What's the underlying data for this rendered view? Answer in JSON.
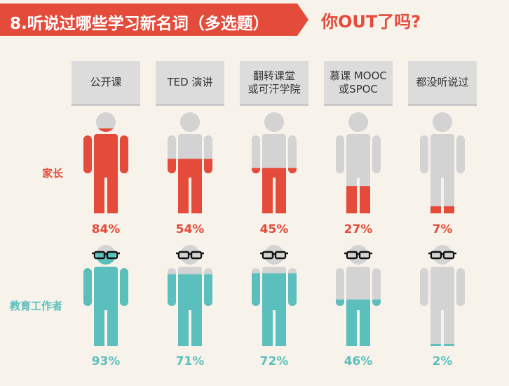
{
  "title": "8.听说过哪些学习新名词（多选题）",
  "subtitle": "你OUT了吗?",
  "colors": {
    "parent": "#e54b3b",
    "educator": "#5bc0bd",
    "grey": "#d3d3d3",
    "title_bg": "#e54b3b",
    "header_bg": "#dcdcdc"
  },
  "chart_data": {
    "type": "pictogram",
    "categories": [
      "公开课",
      "TED 演讲",
      "翻转课堂\n或可汗学院",
      "慕课 MOOC\n或SPOC",
      "都没听说过"
    ],
    "series": [
      {
        "name": "家长",
        "values": [
          84,
          54,
          45,
          27,
          7
        ],
        "value_labels": [
          "84%",
          "54%",
          "45%",
          "27%",
          "7%"
        ],
        "color": "#e54b3b",
        "glasses": false
      },
      {
        "name": "教育工作者",
        "values": [
          93,
          71,
          72,
          46,
          2
        ],
        "value_labels": [
          "93%",
          "71%",
          "72%",
          "46%",
          "2%"
        ],
        "color": "#5bc0bd",
        "glasses": true
      }
    ],
    "ylim": [
      0,
      100
    ]
  }
}
